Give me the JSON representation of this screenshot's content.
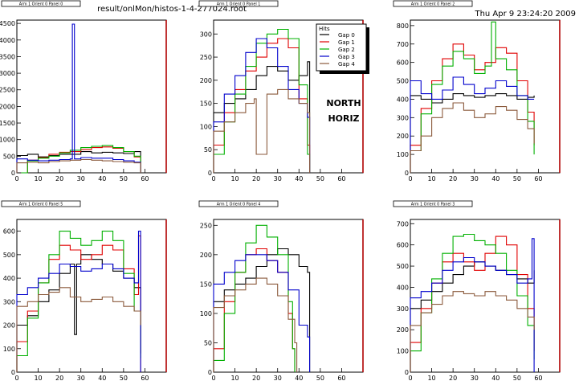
{
  "header": {
    "file_path": "result/onlMon/histos-1-4-277024.root",
    "timestamp": "Thu Apr  9 23:24:20 2009"
  },
  "annotation": {
    "north": "NORTH",
    "horiz": "HORIZ"
  },
  "legend": {
    "title": "Hits",
    "entries": [
      "Gap 0",
      "Gap 1",
      "Gap 2",
      "Gap 3",
      "Gap 4"
    ]
  },
  "colors": {
    "Gap 0": "#000000",
    "Gap 1": "#e00000",
    "Gap 2": "#00b000",
    "Gap 3": "#0000cc",
    "Gap 4": "#8b5a3c",
    "frame_right": "#b00000"
  },
  "chart_data": [
    {
      "type": "line",
      "title": "Arm 1 Orient 0 Panel 0",
      "xlim": [
        0,
        70
      ],
      "ylim": [
        0,
        4600
      ],
      "xticks": [
        0,
        10,
        20,
        30,
        40,
        50,
        60
      ],
      "yticks": [
        0,
        500,
        1000,
        1500,
        2000,
        2500,
        3000,
        3500,
        4000,
        4500
      ],
      "series": [
        {
          "name": "Gap 0",
          "x": [
            0,
            5,
            10,
            15,
            20,
            25,
            30,
            35,
            40,
            45,
            50,
            55,
            58
          ],
          "values": [
            520,
            560,
            480,
            520,
            560,
            560,
            640,
            600,
            620,
            600,
            580,
            640,
            0
          ]
        },
        {
          "name": "Gap 1",
          "x": [
            2,
            5,
            10,
            15,
            20,
            25,
            30,
            35,
            40,
            45,
            50,
            55,
            58
          ],
          "values": [
            0,
            380,
            460,
            560,
            620,
            640,
            700,
            760,
            780,
            740,
            640,
            480,
            0
          ]
        },
        {
          "name": "Gap 2",
          "x": [
            2,
            5,
            10,
            15,
            20,
            25,
            30,
            35,
            40,
            45,
            50,
            55,
            58
          ],
          "values": [
            0,
            360,
            440,
            500,
            600,
            680,
            760,
            800,
            820,
            760,
            640,
            500,
            0
          ]
        },
        {
          "name": "Gap 3",
          "x": [
            0,
            5,
            10,
            15,
            20,
            25,
            26,
            27,
            30,
            35,
            40,
            45,
            50,
            55,
            58
          ],
          "values": [
            420,
            380,
            360,
            380,
            400,
            420,
            4480,
            420,
            460,
            440,
            440,
            400,
            360,
            320,
            0
          ]
        },
        {
          "name": "Gap 4",
          "x": [
            0,
            5,
            10,
            15,
            20,
            25,
            30,
            35,
            40,
            45,
            50,
            55,
            58
          ],
          "values": [
            300,
            320,
            300,
            340,
            360,
            380,
            400,
            380,
            360,
            340,
            320,
            300,
            0
          ]
        }
      ]
    },
    {
      "type": "line",
      "title": "Arm 1 Orient 0 Panel 1",
      "xlim": [
        0,
        70
      ],
      "ylim": [
        0,
        330
      ],
      "xticks": [
        0,
        10,
        20,
        30,
        40,
        50,
        60
      ],
      "yticks": [
        0,
        50,
        100,
        150,
        200,
        250,
        300
      ],
      "series": [
        {
          "name": "Gap 0",
          "x": [
            0,
            5,
            10,
            15,
            20,
            25,
            30,
            35,
            40,
            44,
            45
          ],
          "values": [
            130,
            150,
            160,
            180,
            210,
            230,
            220,
            200,
            210,
            240,
            0
          ]
        },
        {
          "name": "Gap 1",
          "x": [
            0,
            5,
            10,
            15,
            20,
            25,
            30,
            35,
            40,
            44,
            45
          ],
          "values": [
            60,
            130,
            180,
            220,
            250,
            280,
            290,
            270,
            160,
            60,
            0
          ]
        },
        {
          "name": "Gap 2",
          "x": [
            0,
            5,
            10,
            15,
            20,
            25,
            30,
            35,
            40,
            44,
            45
          ],
          "values": [
            40,
            110,
            170,
            230,
            280,
            300,
            310,
            290,
            190,
            40,
            0
          ]
        },
        {
          "name": "Gap 3",
          "x": [
            0,
            5,
            10,
            15,
            20,
            25,
            30,
            35,
            40,
            44,
            45
          ],
          "values": [
            110,
            170,
            210,
            260,
            290,
            270,
            230,
            180,
            150,
            120,
            0
          ]
        },
        {
          "name": "Gap 4",
          "x": [
            0,
            5,
            10,
            15,
            19,
            20,
            25,
            30,
            35,
            40,
            44,
            45
          ],
          "values": [
            90,
            110,
            130,
            150,
            160,
            40,
            170,
            180,
            160,
            150,
            130,
            0
          ]
        }
      ]
    },
    {
      "type": "line",
      "title": "Arm 1 Orient 0 Panel 2",
      "xlim": [
        0,
        70
      ],
      "ylim": [
        0,
        830
      ],
      "xticks": [
        0,
        10,
        20,
        30,
        40,
        50,
        60
      ],
      "yticks": [
        0,
        100,
        200,
        300,
        400,
        500,
        600,
        700,
        800
      ],
      "series": [
        {
          "name": "Gap 0",
          "x": [
            0,
            5,
            10,
            15,
            20,
            25,
            30,
            35,
            40,
            45,
            50,
            55,
            58
          ],
          "values": [
            420,
            400,
            380,
            400,
            430,
            420,
            410,
            420,
            430,
            420,
            400,
            410,
            420
          ]
        },
        {
          "name": "Gap 1",
          "x": [
            0,
            5,
            10,
            15,
            20,
            25,
            30,
            35,
            40,
            45,
            50,
            55,
            58
          ],
          "values": [
            150,
            350,
            500,
            620,
            700,
            640,
            560,
            600,
            680,
            650,
            500,
            330,
            150
          ]
        },
        {
          "name": "Gap 2",
          "x": [
            0,
            5,
            10,
            15,
            20,
            25,
            30,
            35,
            38,
            40,
            45,
            50,
            55,
            58
          ],
          "values": [
            120,
            320,
            480,
            580,
            660,
            620,
            540,
            580,
            820,
            620,
            560,
            420,
            280,
            100
          ]
        },
        {
          "name": "Gap 3",
          "x": [
            0,
            5,
            10,
            15,
            20,
            25,
            30,
            35,
            40,
            45,
            50,
            55,
            58
          ],
          "values": [
            500,
            430,
            400,
            450,
            520,
            480,
            430,
            460,
            500,
            470,
            420,
            400,
            400
          ]
        },
        {
          "name": "Gap 4",
          "x": [
            0,
            5,
            10,
            15,
            20,
            25,
            30,
            35,
            40,
            45,
            50,
            55,
            58
          ],
          "values": [
            120,
            200,
            300,
            350,
            380,
            340,
            300,
            320,
            360,
            340,
            290,
            240,
            160
          ]
        }
      ]
    },
    {
      "type": "line",
      "title": "Arm 1 Orient 0 Panel 5",
      "xlim": [
        0,
        70
      ],
      "ylim": [
        0,
        650
      ],
      "xticks": [
        0,
        10,
        20,
        30,
        40,
        50,
        60
      ],
      "yticks": [
        0,
        100,
        200,
        300,
        400,
        500,
        600
      ],
      "series": [
        {
          "name": "Gap 0",
          "x": [
            0,
            5,
            10,
            15,
            20,
            25,
            27,
            28,
            30,
            35,
            40,
            45,
            50,
            55,
            58
          ],
          "values": [
            200,
            240,
            300,
            350,
            420,
            460,
            160,
            460,
            500,
            480,
            460,
            430,
            400,
            360,
            80
          ]
        },
        {
          "name": "Gap 1",
          "x": [
            0,
            5,
            10,
            15,
            20,
            25,
            30,
            35,
            40,
            45,
            50,
            55,
            57,
            58
          ],
          "values": [
            130,
            260,
            380,
            480,
            540,
            520,
            480,
            500,
            540,
            520,
            440,
            330,
            580,
            0
          ]
        },
        {
          "name": "Gap 2",
          "x": [
            0,
            5,
            10,
            15,
            20,
            25,
            30,
            35,
            40,
            45,
            50,
            55,
            58
          ],
          "values": [
            70,
            230,
            380,
            500,
            600,
            570,
            540,
            560,
            600,
            560,
            420,
            260,
            60
          ]
        },
        {
          "name": "Gap 3",
          "x": [
            0,
            5,
            10,
            15,
            20,
            25,
            30,
            35,
            40,
            45,
            50,
            55,
            57,
            58
          ],
          "values": [
            330,
            360,
            400,
            420,
            460,
            450,
            430,
            440,
            460,
            440,
            400,
            380,
            600,
            0
          ]
        },
        {
          "name": "Gap 4",
          "x": [
            0,
            5,
            10,
            15,
            20,
            25,
            30,
            35,
            40,
            45,
            50,
            55,
            58
          ],
          "values": [
            280,
            300,
            330,
            340,
            360,
            320,
            300,
            310,
            320,
            300,
            280,
            260,
            200
          ]
        }
      ]
    },
    {
      "type": "line",
      "title": "Arm 1 Orient 0 Panel 4",
      "xlim": [
        0,
        70
      ],
      "ylim": [
        0,
        260
      ],
      "xticks": [
        0,
        10,
        20,
        30,
        40,
        50,
        60
      ],
      "yticks": [
        0,
        50,
        100,
        150,
        200,
        250
      ],
      "series": [
        {
          "name": "Gap 0",
          "x": [
            0,
            5,
            10,
            15,
            20,
            25,
            30,
            35,
            40,
            44,
            45
          ],
          "values": [
            120,
            140,
            150,
            160,
            180,
            200,
            210,
            200,
            180,
            170,
            0
          ]
        },
        {
          "name": "Gap 1",
          "x": [
            0,
            5,
            10,
            15,
            20,
            25,
            30,
            35,
            37,
            38
          ],
          "values": [
            40,
            120,
            170,
            200,
            210,
            190,
            170,
            100,
            40,
            0
          ]
        },
        {
          "name": "Gap 2",
          "x": [
            0,
            5,
            10,
            15,
            20,
            25,
            30,
            35,
            37,
            38
          ],
          "values": [
            20,
            100,
            170,
            220,
            250,
            230,
            200,
            120,
            40,
            0
          ]
        },
        {
          "name": "Gap 3",
          "x": [
            0,
            5,
            10,
            15,
            20,
            25,
            30,
            35,
            40,
            44,
            45
          ],
          "values": [
            150,
            170,
            190,
            200,
            200,
            190,
            170,
            140,
            80,
            60,
            0
          ]
        },
        {
          "name": "Gap 4",
          "x": [
            0,
            5,
            10,
            15,
            20,
            25,
            30,
            35,
            38,
            39
          ],
          "values": [
            110,
            130,
            140,
            150,
            160,
            150,
            130,
            90,
            50,
            0
          ]
        }
      ]
    },
    {
      "type": "line",
      "title": "Arm 1 Orient 0 Panel 3",
      "xlim": [
        0,
        70
      ],
      "ylim": [
        0,
        720
      ],
      "xticks": [
        0,
        10,
        20,
        30,
        40,
        50,
        60
      ],
      "yticks": [
        0,
        100,
        200,
        300,
        400,
        500,
        600,
        700
      ],
      "series": [
        {
          "name": "Gap 0",
          "x": [
            0,
            5,
            10,
            15,
            20,
            25,
            30,
            35,
            40,
            45,
            50,
            55,
            58
          ],
          "values": [
            300,
            340,
            380,
            420,
            460,
            500,
            520,
            500,
            480,
            460,
            440,
            420,
            480
          ]
        },
        {
          "name": "Gap 1",
          "x": [
            0,
            5,
            10,
            15,
            20,
            25,
            30,
            35,
            40,
            45,
            50,
            55,
            58
          ],
          "values": [
            140,
            300,
            420,
            520,
            560,
            520,
            480,
            560,
            640,
            600,
            460,
            300,
            100
          ]
        },
        {
          "name": "Gap 2",
          "x": [
            0,
            5,
            10,
            15,
            20,
            25,
            30,
            35,
            40,
            45,
            50,
            55,
            58
          ],
          "values": [
            100,
            280,
            440,
            560,
            640,
            650,
            620,
            600,
            560,
            480,
            360,
            220,
            60
          ]
        },
        {
          "name": "Gap 3",
          "x": [
            0,
            5,
            10,
            15,
            20,
            25,
            30,
            35,
            40,
            45,
            50,
            55,
            57,
            58
          ],
          "values": [
            350,
            380,
            420,
            480,
            520,
            540,
            520,
            500,
            480,
            460,
            420,
            440,
            630,
            0
          ]
        },
        {
          "name": "Gap 4",
          "x": [
            0,
            5,
            10,
            15,
            20,
            25,
            30,
            35,
            40,
            45,
            50,
            55,
            58
          ],
          "values": [
            220,
            280,
            320,
            360,
            380,
            370,
            360,
            380,
            360,
            340,
            300,
            260,
            200
          ]
        }
      ]
    }
  ]
}
